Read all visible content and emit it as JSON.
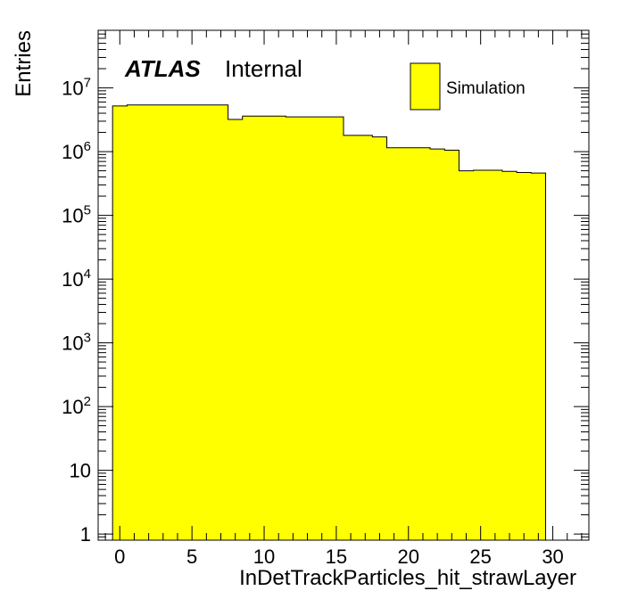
{
  "chart_data": {
    "type": "bar",
    "histogram": true,
    "x_bin_edges": [
      -0.5,
      0.5,
      1.5,
      2.5,
      3.5,
      4.5,
      5.5,
      6.5,
      7.5,
      8.5,
      9.5,
      10.5,
      11.5,
      12.5,
      13.5,
      14.5,
      15.5,
      16.5,
      17.5,
      18.5,
      19.5,
      20.5,
      21.5,
      22.5,
      23.5,
      24.5,
      25.5,
      26.5,
      27.5,
      28.5,
      29.5
    ],
    "values": [
      5200000,
      5400000,
      5400000,
      5400000,
      5400000,
      5400000,
      5400000,
      5400000,
      3200000,
      3600000,
      3600000,
      3600000,
      3500000,
      3500000,
      3500000,
      3500000,
      1800000,
      1800000,
      1700000,
      1150000,
      1150000,
      1150000,
      1100000,
      1050000,
      500000,
      510000,
      510000,
      490000,
      470000,
      460000
    ],
    "xlabel": "InDetTrackParticles_hit_strawLayer",
    "ylabel": "Entries",
    "xlim": [
      -1.5,
      32.5
    ],
    "ylim": [
      0.8,
      80000000
    ],
    "y_log_scale": true,
    "x_ticks": [
      "0",
      "5",
      "10",
      "15",
      "20",
      "25",
      "30"
    ],
    "y_ticks": [
      {
        "base": "1",
        "exp": ""
      },
      {
        "base": "10",
        "exp": ""
      },
      {
        "base": "10",
        "exp": "2"
      },
      {
        "base": "10",
        "exp": "3"
      },
      {
        "base": "10",
        "exp": "4"
      },
      {
        "base": "10",
        "exp": "5"
      },
      {
        "base": "10",
        "exp": "6"
      },
      {
        "base": "10",
        "exp": "7"
      }
    ],
    "fill_color": "#ffff00",
    "line_color": "#000000",
    "legend": {
      "entry": "Simulation",
      "placement": "top-right"
    },
    "label": {
      "experiment": "ATLAS",
      "status": "Internal"
    }
  }
}
